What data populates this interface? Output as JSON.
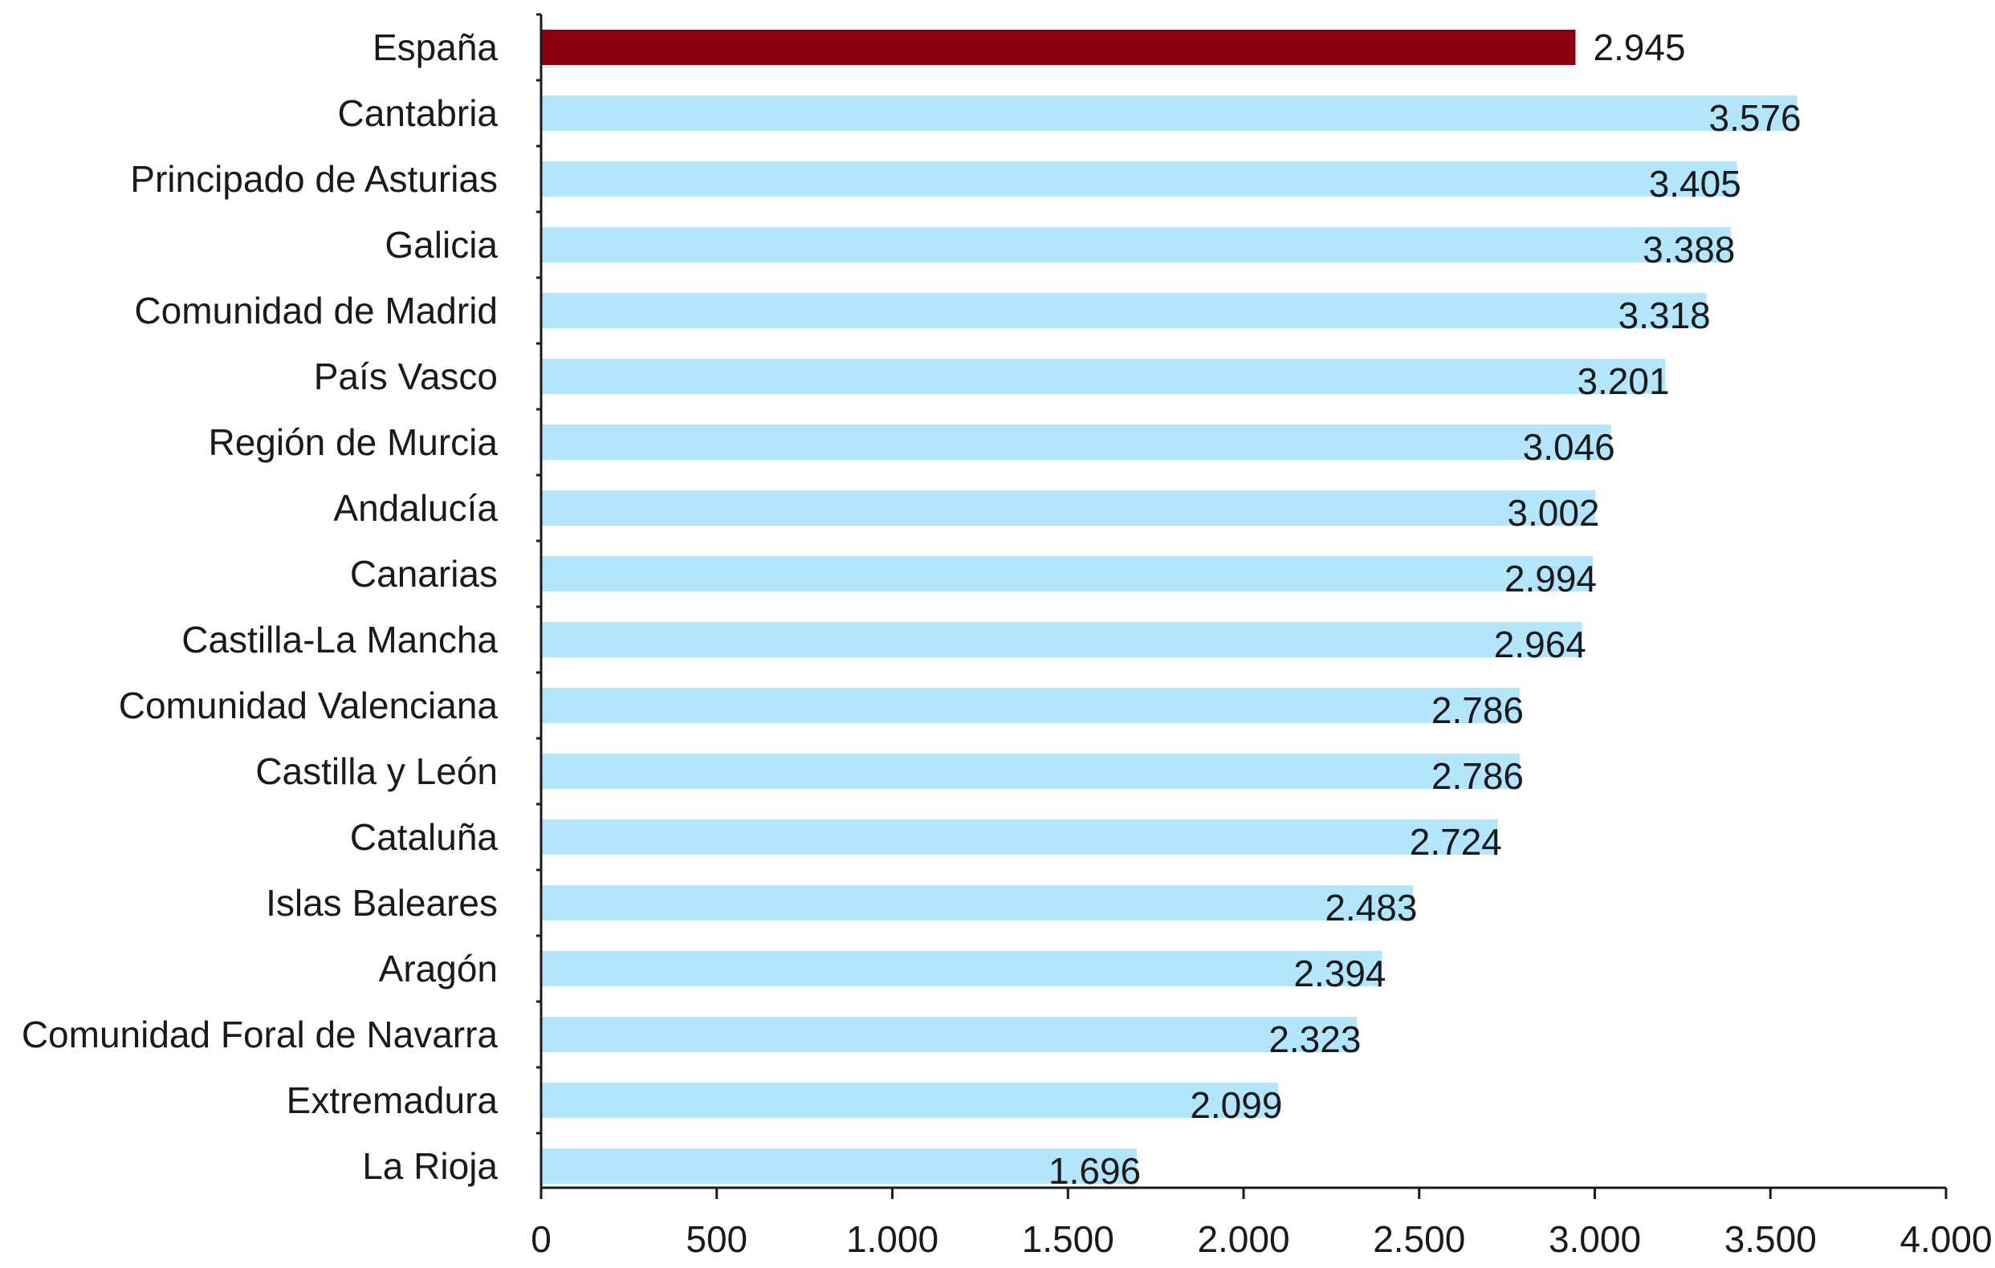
{
  "chart_data": {
    "type": "bar",
    "orientation": "horizontal",
    "title": "",
    "xlabel": "",
    "ylabel": "",
    "categories": [
      "España",
      "Cantabria",
      "Principado de Asturias",
      "Galicia",
      "Comunidad de Madrid",
      "País Vasco",
      "Región de Murcia",
      "Andalucía",
      "Canarias",
      "Castilla-La Mancha",
      "Comunidad Valenciana",
      "Castilla y León",
      "Cataluña",
      "Islas Baleares",
      "Aragón",
      "Comunidad Foral de Navarra",
      "Extremadura",
      "La Rioja"
    ],
    "values": [
      2945,
      3576,
      3405,
      3388,
      3318,
      3201,
      3046,
      3002,
      2994,
      2964,
      2786,
      2786,
      2724,
      2483,
      2394,
      2323,
      2099,
      1696
    ],
    "value_labels": [
      "2.945",
      "3.576",
      "3.405",
      "3.388",
      "3.318",
      "3.201",
      "3.046",
      "3.002",
      "2.994",
      "2.964",
      "2.786",
      "2.786",
      "2.724",
      "2.483",
      "2.394",
      "2.323",
      "2.099",
      "1.696"
    ],
    "highlight_index": 0,
    "xlim": [
      0,
      4000
    ],
    "x_ticks": [
      0,
      500,
      1000,
      1500,
      2000,
      2500,
      3000,
      3500,
      4000
    ],
    "x_tick_labels": [
      "0",
      "500",
      "1.000",
      "1.500",
      "2.000",
      "2.500",
      "3.000",
      "3.500",
      "4.000"
    ],
    "grid": false,
    "colors": {
      "highlight": "#8b0010",
      "bar": "#b3e5fc",
      "axis": "#1a1a1a",
      "text": "#1a1a1a"
    }
  }
}
